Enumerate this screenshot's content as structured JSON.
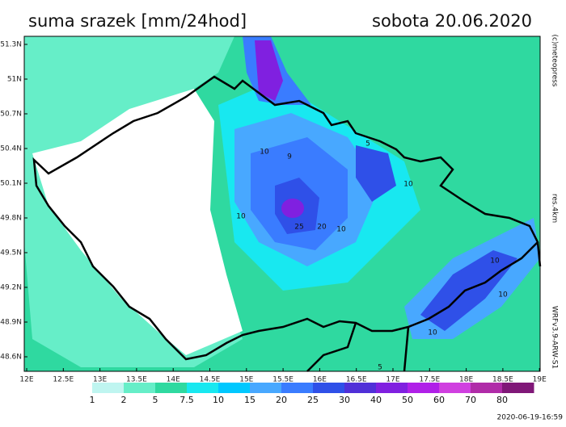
{
  "header": {
    "title": "suma srazek [mm/24hod]",
    "date": "sobota 20.06.2020"
  },
  "axes": {
    "lat_labels": [
      "51.3N",
      "51N",
      "50.7N",
      "50.4N",
      "50.1N",
      "49.8N",
      "49.5N",
      "49.2N",
      "48.9N",
      "48.6N"
    ],
    "lon_labels": [
      "12E",
      "12.5E",
      "13E",
      "13.5E",
      "14E",
      "14.5E",
      "15E",
      "15.5E",
      "16E",
      "16.5E",
      "17E",
      "17.5E",
      "18E",
      "18.5E",
      "19E"
    ]
  },
  "contour_labels": [
    "10",
    "9",
    "10",
    "25",
    "20",
    "10",
    "5",
    "10",
    "10",
    "10",
    "10",
    "5"
  ],
  "legend": {
    "labels": [
      "1",
      "2",
      "5",
      "7.5",
      "10",
      "15",
      "20",
      "25",
      "30",
      "40",
      "50",
      "60",
      "70",
      "80"
    ],
    "colors": [
      "#ffffff",
      "#bff5f0",
      "#66eec8",
      "#2fd9a0",
      "#18e8f0",
      "#00c8ff",
      "#48a8ff",
      "#3a7cff",
      "#2f50e8",
      "#5030d8",
      "#8020e0",
      "#b020e8",
      "#d040e0",
      "#b02ca8",
      "#801878"
    ]
  },
  "credits": {
    "copyright": "(c)meteopress",
    "resolution": "res.4km",
    "model": "WRFv3.9-ARW-S1",
    "issued": "2020-06-19-16:59"
  }
}
